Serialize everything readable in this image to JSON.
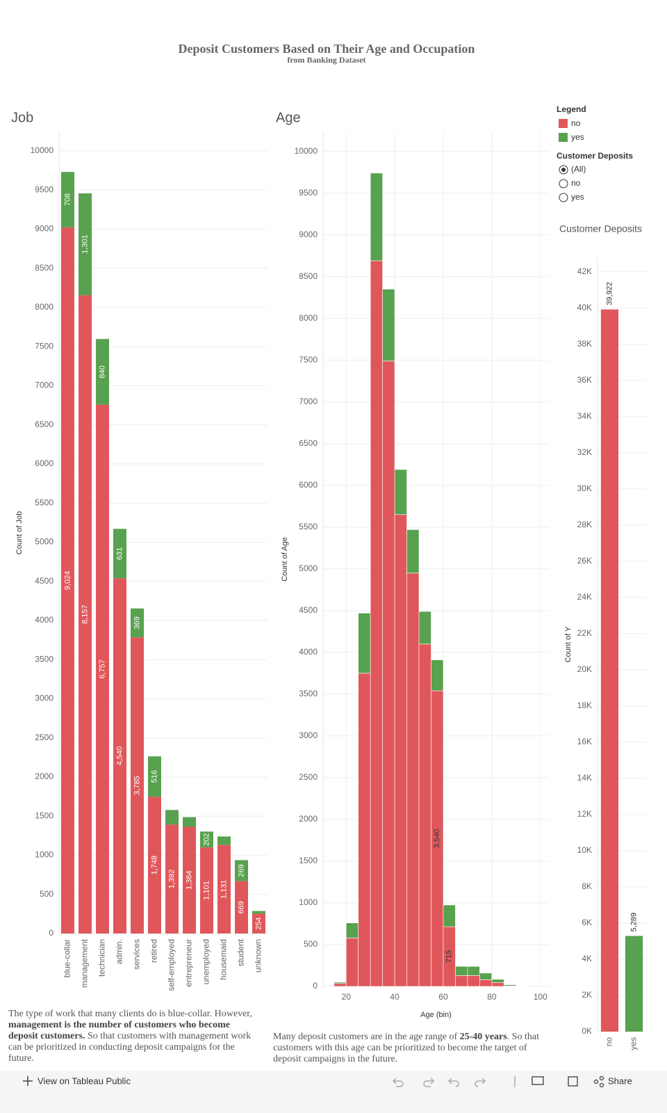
{
  "header": {
    "title": "Deposit Customers Based on Their Age and Occupation",
    "subtitle": "from Banking Dataset"
  },
  "chart_data": [
    {
      "type": "bar",
      "stacked": true,
      "title": "Job",
      "y_label": "Count of Job",
      "label_color": "#ffffff",
      "categories": [
        "blue-collar",
        "management",
        "technician",
        "admin.",
        "services",
        "retired",
        "self-employed",
        "entrepreneur",
        "unemployed",
        "housemaid",
        "student",
        "unknown"
      ],
      "series": [
        {
          "name": "no",
          "color": "#e0575b",
          "values": [
            9024,
            8157,
            6757,
            4540,
            3785,
            1748,
            1392,
            1364,
            1101,
            1131,
            669,
            254
          ],
          "value_labels": [
            "9,024",
            "8,157",
            "6,757",
            "4,540",
            "3,785",
            "1,748",
            "1,392",
            "1,364",
            "1,101",
            "1,131",
            "669",
            "254"
          ]
        },
        {
          "name": "yes",
          "color": "#58a14e",
          "values": [
            708,
            1301,
            840,
            631,
            369,
            516,
            187,
            123,
            202,
            109,
            269,
            34
          ],
          "value_labels": [
            "708",
            "1,301",
            "840",
            "631",
            "369",
            "516",
            null,
            null,
            "202",
            null,
            "269",
            null
          ]
        }
      ],
      "ylim": [
        0,
        10240
      ],
      "yticks": [
        0,
        500,
        1000,
        1500,
        2000,
        2500,
        3000,
        3500,
        4000,
        4500,
        5000,
        5500,
        6000,
        6500,
        7000,
        7500,
        8000,
        8500,
        9000,
        9500,
        10000
      ],
      "grid": true
    },
    {
      "type": "histogram",
      "stacked": true,
      "title": "Age",
      "x_label": "Age (bin)",
      "y_label": "Count of Age",
      "label_color": "#333333",
      "bins": [
        15,
        20,
        25,
        30,
        35,
        40,
        45,
        50,
        55,
        60,
        65,
        70,
        75,
        80,
        85,
        90,
        95
      ],
      "series": [
        {
          "name": "no",
          "color": "#e0575b",
          "values": [
            35,
            580,
            3750,
            8690,
            7490,
            5650,
            4950,
            4100,
            3540,
            715,
            130,
            130,
            80,
            45,
            5,
            2
          ],
          "value_labels": [
            null,
            null,
            null,
            null,
            null,
            null,
            null,
            null,
            "3,540",
            "715",
            null,
            null,
            null,
            null,
            null,
            null
          ]
        },
        {
          "name": "yes",
          "color": "#58a14e",
          "values": [
            15,
            180,
            720,
            1050,
            860,
            540,
            520,
            390,
            370,
            260,
            110,
            110,
            80,
            40,
            15,
            3
          ],
          "value_labels": [
            null,
            null,
            null,
            null,
            null,
            null,
            null,
            null,
            null,
            null,
            null,
            null,
            null,
            null,
            null,
            null
          ]
        }
      ],
      "xlim": [
        10.5,
        103.5
      ],
      "xticks": [
        20,
        40,
        60,
        80,
        100
      ],
      "ylim": [
        0,
        10230
      ],
      "yticks": [
        0,
        500,
        1000,
        1500,
        2000,
        2500,
        3000,
        3500,
        4000,
        4500,
        5000,
        5500,
        6000,
        6500,
        7000,
        7500,
        8000,
        8500,
        9000,
        9500,
        10000
      ],
      "grid": true
    },
    {
      "type": "bar",
      "title": "Customer Deposits",
      "y_label": "Count of Y",
      "label_color": "#333333",
      "categories": [
        "no",
        "yes"
      ],
      "values": [
        39922,
        5289
      ],
      "value_labels": [
        "39,922",
        "5,289"
      ],
      "colors": [
        "#e0575b",
        "#58a14e"
      ],
      "ylim": [
        0,
        42800
      ],
      "yticks": [
        {
          "value": 0,
          "label": "0K"
        },
        {
          "value": 2000,
          "label": "2K"
        },
        {
          "value": 4000,
          "label": "4K"
        },
        {
          "value": 6000,
          "label": "6K"
        },
        {
          "value": 8000,
          "label": "8K"
        },
        {
          "value": 10000,
          "label": "10K"
        },
        {
          "value": 12000,
          "label": "12K"
        },
        {
          "value": 14000,
          "label": "14K"
        },
        {
          "value": 16000,
          "label": "16K"
        },
        {
          "value": 18000,
          "label": "18K"
        },
        {
          "value": 20000,
          "label": "20K"
        },
        {
          "value": 22000,
          "label": "22K"
        },
        {
          "value": 24000,
          "label": "24K"
        },
        {
          "value": 26000,
          "label": "26K"
        },
        {
          "value": 28000,
          "label": "28K"
        },
        {
          "value": 30000,
          "label": "30K"
        },
        {
          "value": 32000,
          "label": "32K"
        },
        {
          "value": 34000,
          "label": "34K"
        },
        {
          "value": 36000,
          "label": "36K"
        },
        {
          "value": 38000,
          "label": "38K"
        },
        {
          "value": 40000,
          "label": "40K"
        },
        {
          "value": 42000,
          "label": "42K"
        }
      ],
      "grid": true
    }
  ],
  "legend": {
    "title": "Legend"
  },
  "filter": {
    "title": "Customer Deposits",
    "options": [
      "(All)",
      "no",
      "yes"
    ],
    "selected": 0
  },
  "captions": [
    [
      {
        "text": "The type of work that many clients do is blue-collar. However, "
      },
      {
        "text": "management is the number of customers who become deposit customers.",
        "bold": true
      },
      {
        "text": " So that customers with management work can be prioritized in conducting deposit campaigns for the future."
      }
    ],
    [
      {
        "text": "Many deposit customers are in the age range of "
      },
      {
        "text": "25-40 years",
        "bold": true
      },
      {
        "text": ". So that customers with this age can be prioritized to become the target of deposit campaigns in the future."
      }
    ]
  ],
  "toolbar": {
    "view": "View on Tableau Public",
    "share": "Share"
  }
}
